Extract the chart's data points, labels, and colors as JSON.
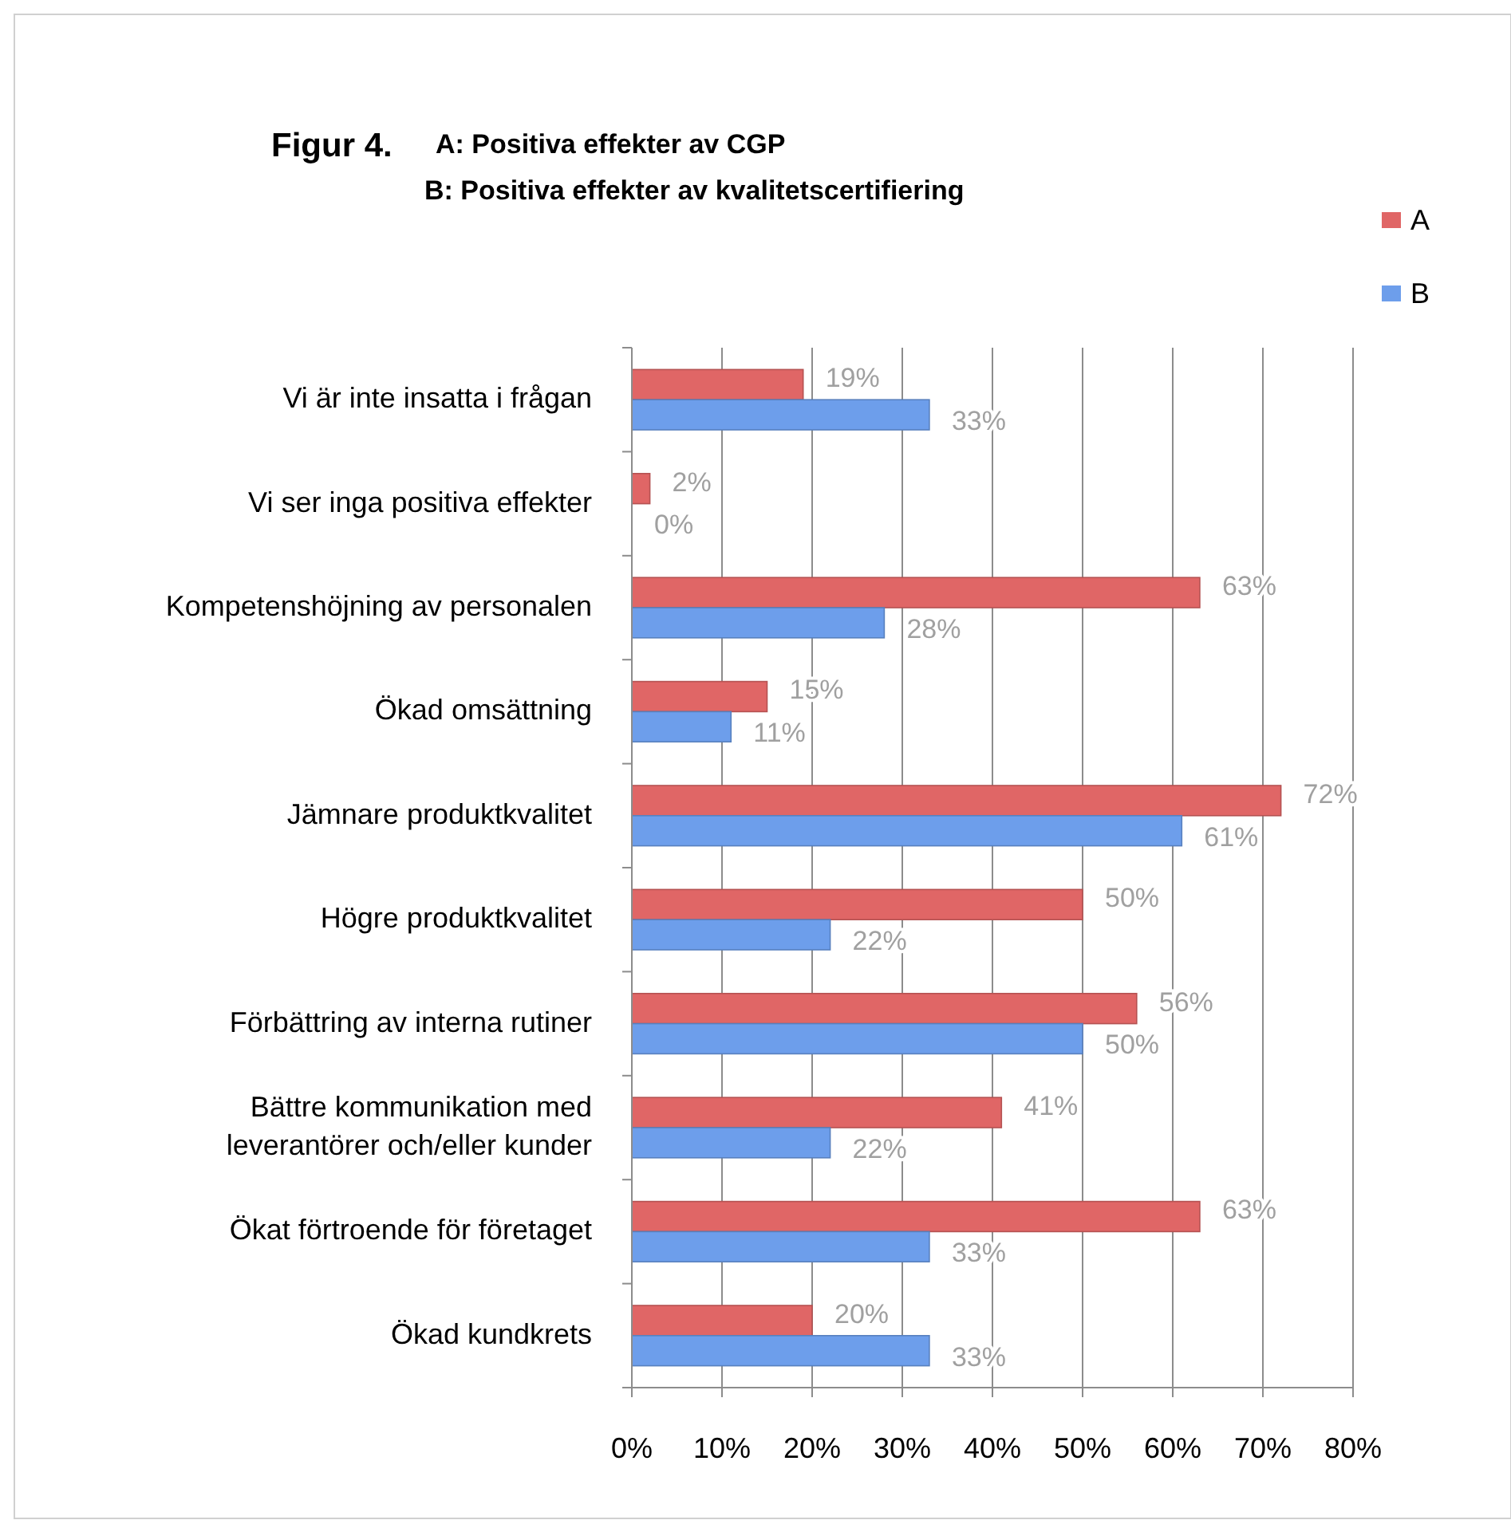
{
  "chart_data": {
    "type": "bar",
    "orientation": "horizontal",
    "title": "Figur 4.",
    "subtitle": "A: Positiva effekter av CGP\nB: Positiva effekter av kvalitetscertifiering",
    "categories": [
      "Vi är inte insatta i frågan",
      "Vi ser inga positiva effekter",
      "Kompetenshöjning av personalen",
      "Ökad omsättning",
      "Jämnare produktkvalitet",
      "Högre produktkvalitet",
      "Förbättring av interna rutiner",
      "Bättre kommunikation med leverantörer och/eller kunder",
      "Ökat förtroende för företaget",
      "Ökad kundkrets"
    ],
    "series": [
      {
        "name": "A",
        "color": "#e06666",
        "values": [
          19,
          2,
          63,
          15,
          72,
          50,
          56,
          41,
          63,
          20
        ],
        "value_labels": [
          "19%",
          "2%",
          "63%",
          "15%",
          "72%",
          "50%",
          "56%",
          "41%",
          "63%",
          "20%"
        ]
      },
      {
        "name": "B",
        "color": "#6d9eeb",
        "values": [
          33,
          0,
          28,
          11,
          61,
          22,
          50,
          22,
          33,
          33
        ],
        "value_labels": [
          "33%",
          "0%",
          "28%",
          "11%",
          "61%",
          "22%",
          "50%",
          "22%",
          "33%",
          "33%"
        ]
      }
    ],
    "xlim": [
      0,
      80
    ],
    "xticks": [
      {
        "value": 0,
        "label": "0%"
      },
      {
        "value": 10,
        "label": "10%"
      },
      {
        "value": 20,
        "label": "20%"
      },
      {
        "value": 30,
        "label": "30%"
      },
      {
        "value": 40,
        "label": "40%"
      },
      {
        "value": 50,
        "label": "50%"
      },
      {
        "value": 60,
        "label": "60%"
      },
      {
        "value": 70,
        "label": "70%"
      },
      {
        "value": 80,
        "label": "80%"
      }
    ],
    "grid": "x",
    "legend": "top right"
  }
}
